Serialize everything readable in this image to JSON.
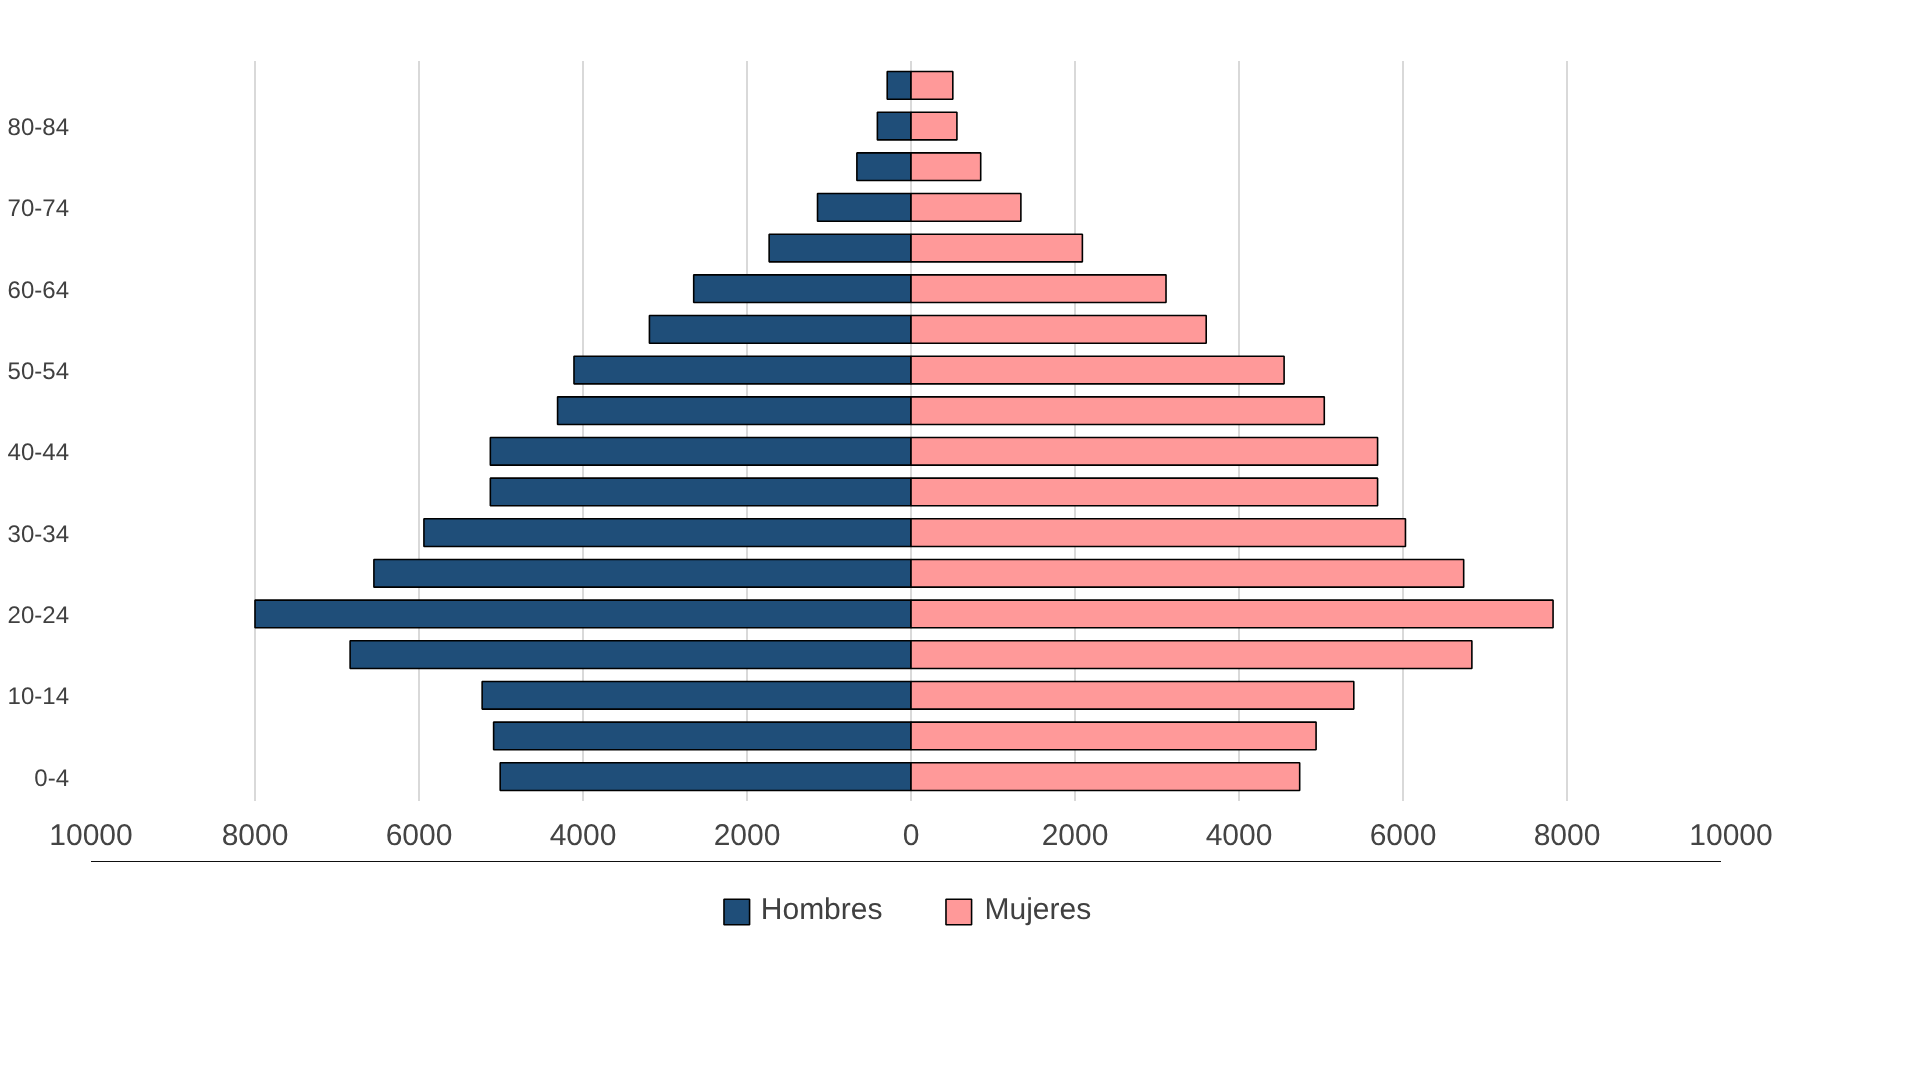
{
  "chart_data": {
    "type": "bar",
    "orientation": "horizontal",
    "categories": [
      null,
      "80-84",
      null,
      "70-74",
      null,
      "60-64",
      null,
      "50-54",
      null,
      "40-44",
      null,
      "30-34",
      null,
      "20-24",
      null,
      "10-14",
      null,
      "0-4"
    ],
    "series": [
      {
        "name": "Hombres",
        "color": "#1f4e79",
        "values": [
          -290,
          -410,
          -660,
          -1140,
          -1730,
          -2650,
          -3190,
          -4110,
          -4310,
          -5130,
          -5130,
          -5940,
          -6550,
          -8000,
          -6840,
          -5230,
          -5090,
          -5010
        ]
      },
      {
        "name": "Mujeres",
        "color": "#ff9999",
        "values": [
          510,
          560,
          850,
          1340,
          2090,
          3110,
          3600,
          4550,
          5040,
          5690,
          5690,
          6030,
          6740,
          7830,
          6840,
          5400,
          4940,
          4740
        ]
      }
    ],
    "xlim": [
      -10000,
      10000
    ],
    "xticks": [
      {
        "value": -10000,
        "label": "10000"
      },
      {
        "value": -8000,
        "label": "8000"
      },
      {
        "value": -6000,
        "label": "6000"
      },
      {
        "value": -4000,
        "label": "4000"
      },
      {
        "value": -2000,
        "label": "2000"
      },
      0,
      2000,
      4000,
      6000,
      8000,
      10000
    ],
    "stacked": true,
    "grid": "x",
    "legend": "bottom"
  }
}
